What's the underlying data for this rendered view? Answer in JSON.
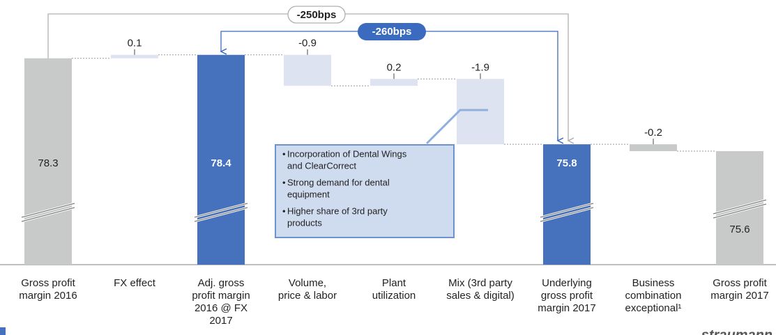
{
  "chart_data": {
    "type": "waterfall",
    "categories": [
      [
        "Gross profit",
        "margin 2016"
      ],
      [
        "FX effect"
      ],
      [
        "Adj. gross",
        "profit margin",
        "2016 @ FX",
        "2017"
      ],
      [
        "Volume,",
        "price & labor"
      ],
      [
        "Plant",
        "utilization"
      ],
      [
        "Mix (3rd party",
        "sales & digital)"
      ],
      [
        "Underlying",
        "gross profit",
        "margin 2017"
      ],
      [
        "Business",
        "combination",
        "exceptional¹"
      ],
      [
        "Gross profit",
        "margin 2017"
      ]
    ],
    "values": [
      78.3,
      0.1,
      78.4,
      -0.9,
      0.2,
      -1.9,
      75.8,
      -0.2,
      75.6
    ],
    "kinds": [
      "total",
      "delta",
      "total",
      "delta",
      "delta",
      "delta",
      "total",
      "delta",
      "total"
    ],
    "colors": [
      "#c8c9c9",
      "#dde3f0",
      "#4672bd",
      "#dde3f0",
      "#dde3f0",
      "#dde3f0",
      "#4672bd",
      "#c8c9c9",
      "#c8c9c9"
    ],
    "ylim": [
      72.3,
      78.8
    ],
    "annotations": [
      "-250bps",
      "-260bps"
    ],
    "callout": [
      [
        "Incorporation of Dental Wings",
        "and ClearCorrect"
      ],
      [
        "Strong demand for dental",
        "equipment"
      ],
      [
        "Higher share of 3rd party",
        "products"
      ]
    ]
  },
  "logo": "straumann"
}
